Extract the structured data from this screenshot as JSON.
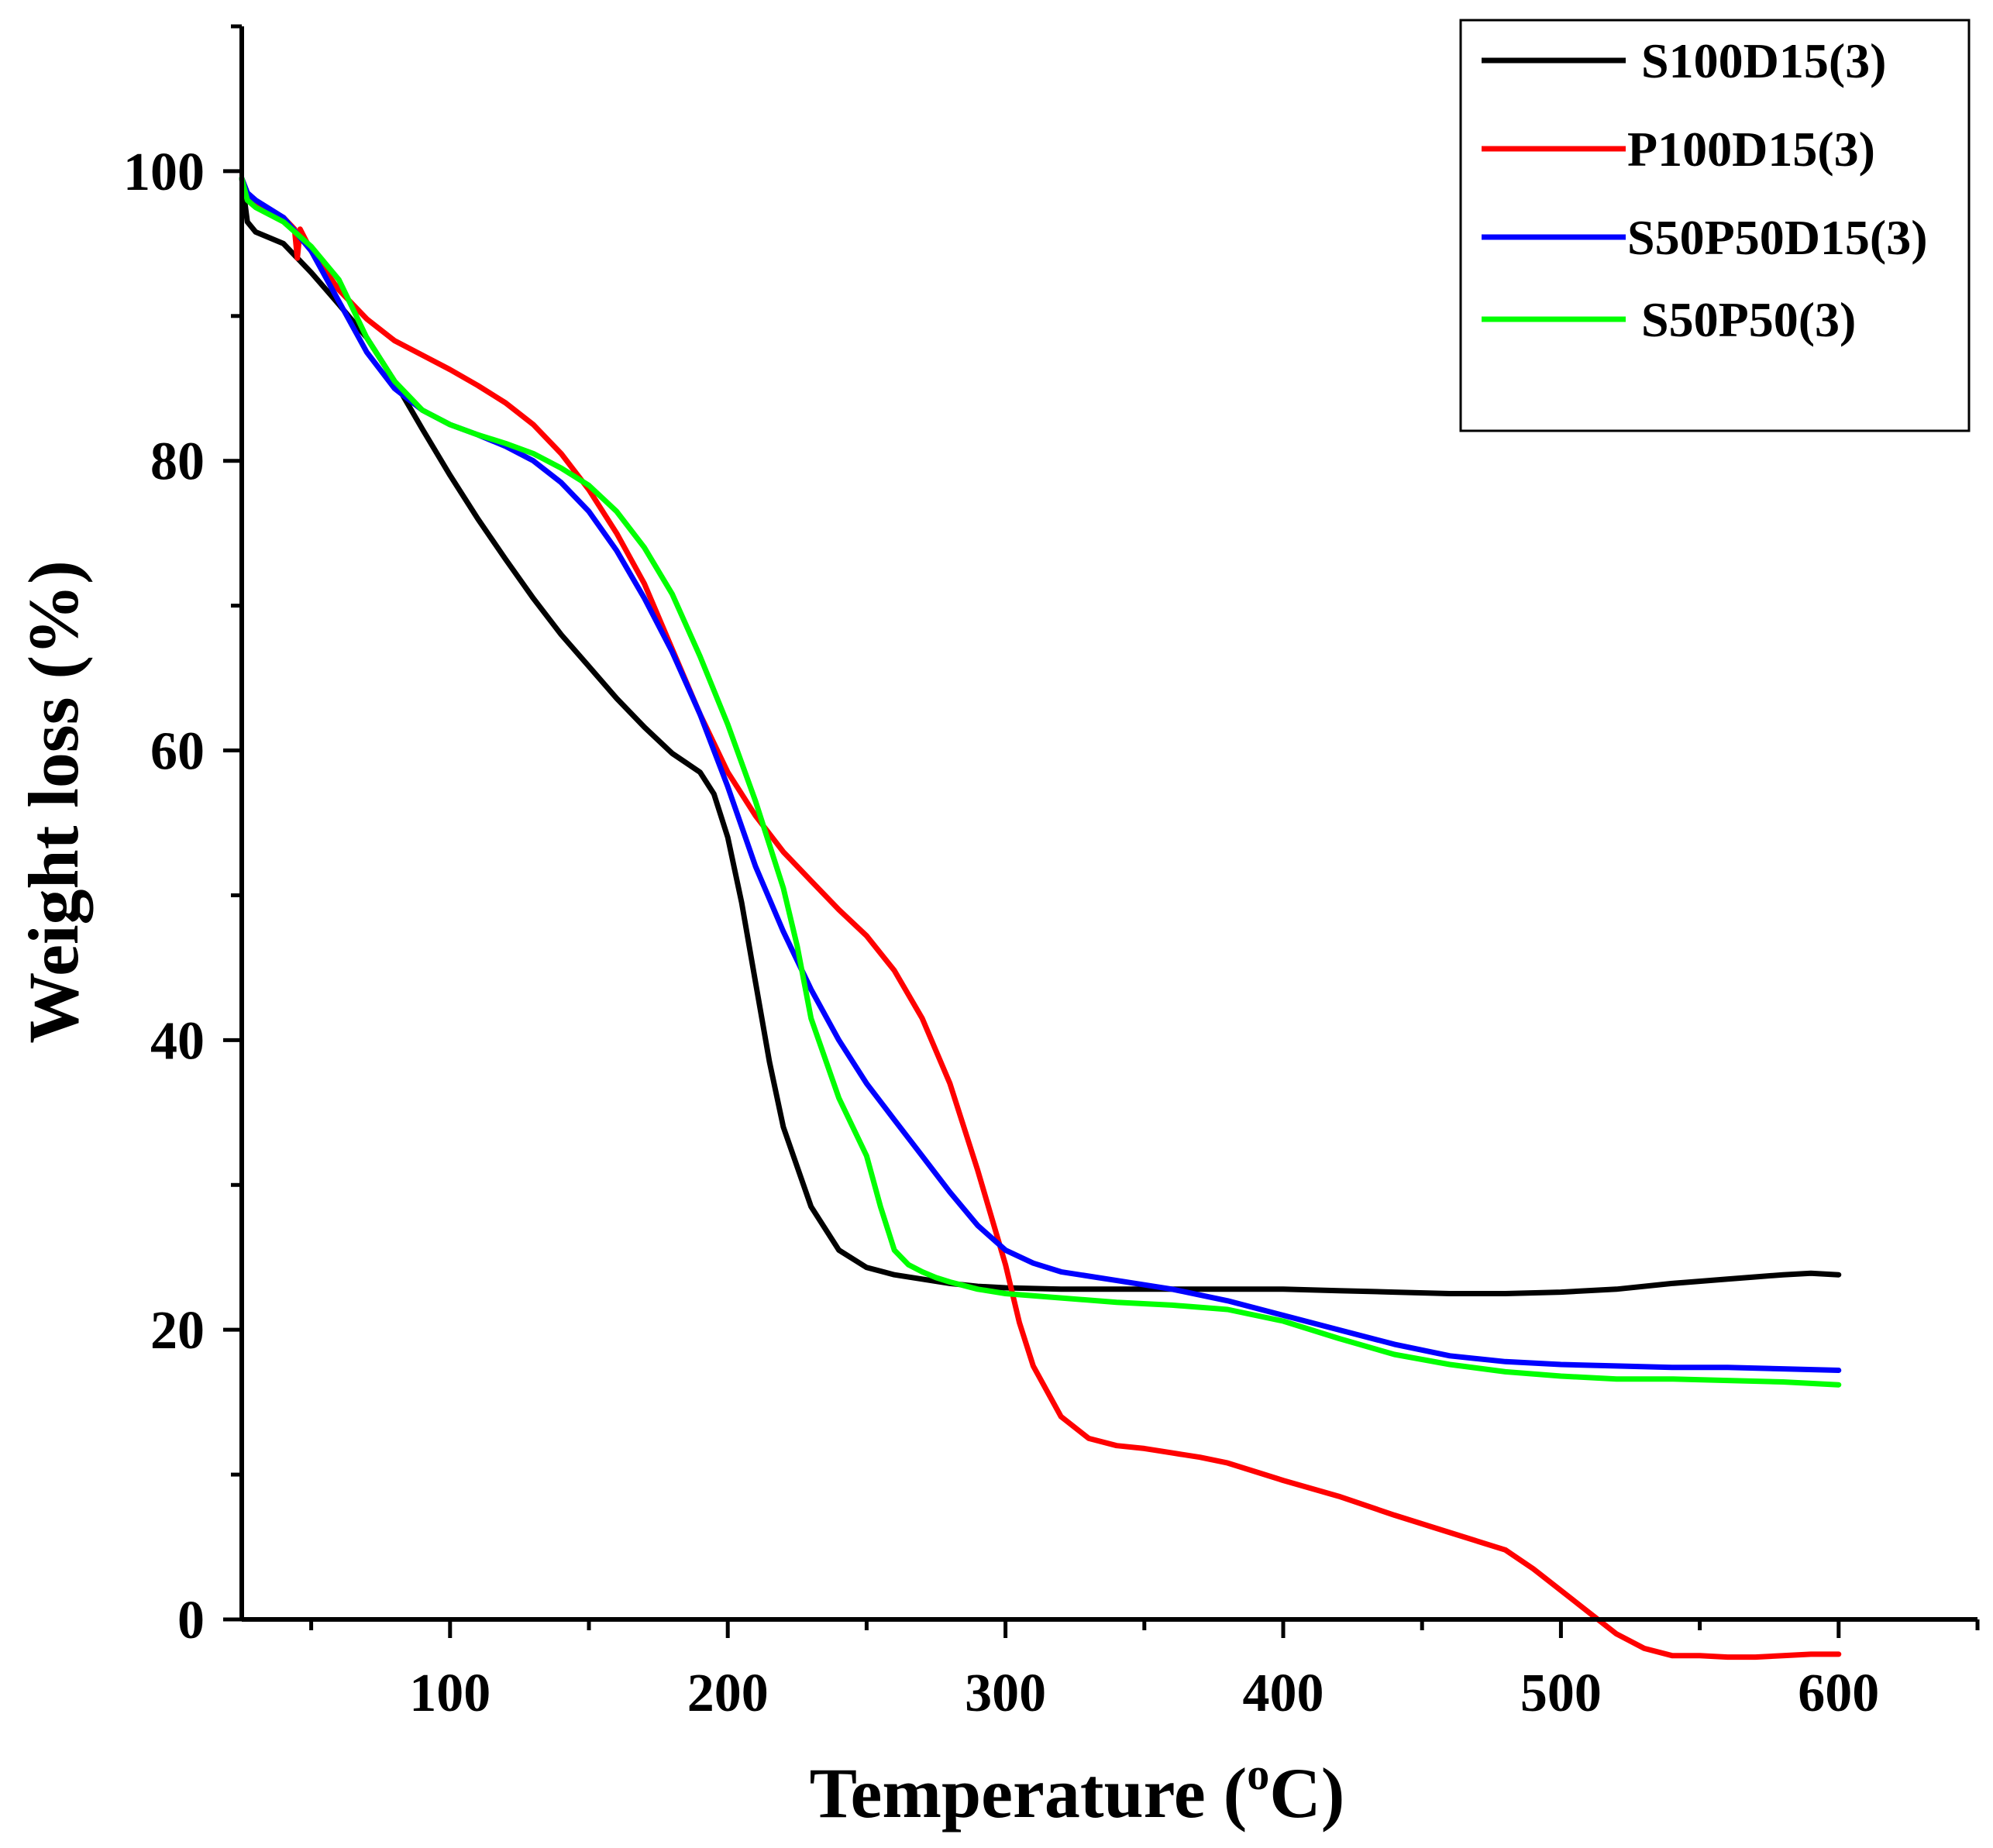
{
  "chart_data": {
    "type": "line",
    "title": "",
    "xlabel": "Temperature (",
    "xlabel_sup": "o",
    "xlabel_end": "C)",
    "ylabel": "Weight loss (%)",
    "xlim": [
      25,
      650
    ],
    "ylim": [
      0,
      110
    ],
    "xticks": [
      {
        "value": 100,
        "label": "100"
      },
      {
        "value": 200,
        "label": "200"
      },
      {
        "value": 300,
        "label": "300"
      },
      {
        "value": 400,
        "label": "400"
      },
      {
        "value": 500,
        "label": "500"
      },
      {
        "value": 600,
        "label": "600"
      }
    ],
    "xminor": [
      50,
      150,
      250,
      350,
      450,
      550,
      650
    ],
    "yticks": [
      {
        "value": 0,
        "label": "0"
      },
      {
        "value": 20,
        "label": "20"
      },
      {
        "value": 40,
        "label": "40"
      },
      {
        "value": 60,
        "label": "60"
      },
      {
        "value": 80,
        "label": "80"
      },
      {
        "value": 100,
        "label": "100"
      }
    ],
    "yminor": [
      10,
      30,
      50,
      70,
      90,
      110
    ],
    "legend_position": "top-right",
    "series": [
      {
        "name": "S100D15(3)",
        "color": "#000000",
        "x": [
          25,
          27,
          30,
          40,
          50,
          60,
          70,
          80,
          90,
          100,
          110,
          120,
          130,
          140,
          150,
          160,
          170,
          180,
          190,
          195,
          200,
          205,
          210,
          215,
          220,
          230,
          240,
          250,
          260,
          270,
          280,
          290,
          300,
          320,
          340,
          360,
          380,
          400,
          420,
          440,
          460,
          480,
          500,
          520,
          540,
          560,
          580,
          590,
          600
        ],
        "y": [
          99.5,
          96.5,
          95.8,
          95.0,
          93.0,
          90.8,
          88.5,
          85.5,
          82.2,
          79.0,
          76.0,
          73.2,
          70.5,
          68.0,
          65.8,
          63.6,
          61.6,
          59.8,
          58.5,
          57.0,
          54.0,
          49.5,
          44.0,
          38.5,
          34.0,
          28.5,
          25.5,
          24.3,
          23.8,
          23.5,
          23.2,
          23.0,
          22.9,
          22.8,
          22.8,
          22.8,
          22.8,
          22.8,
          22.7,
          22.6,
          22.5,
          22.5,
          22.6,
          22.8,
          23.2,
          23.5,
          23.8,
          23.9,
          23.8
        ]
      },
      {
        "name": "P100D15(3)",
        "color": "#ff0000",
        "x": [
          25,
          27,
          30,
          40,
          44,
          45,
          46,
          50,
          60,
          70,
          80,
          90,
          100,
          110,
          120,
          130,
          140,
          150,
          160,
          170,
          180,
          190,
          200,
          210,
          220,
          230,
          240,
          250,
          260,
          270,
          280,
          290,
          300,
          305,
          310,
          320,
          330,
          340,
          350,
          360,
          370,
          380,
          400,
          420,
          440,
          460,
          480,
          490,
          500,
          510,
          520,
          530,
          540,
          550,
          560,
          570,
          580,
          590,
          600
        ],
        "y": [
          99.5,
          98.5,
          97.8,
          96.8,
          96.0,
          94.0,
          96.0,
          94.5,
          91.8,
          89.8,
          88.3,
          87.3,
          86.3,
          85.2,
          84.0,
          82.5,
          80.5,
          78.0,
          75.0,
          71.5,
          67.0,
          62.5,
          58.5,
          55.5,
          53.0,
          51.0,
          49.0,
          47.2,
          44.8,
          41.5,
          37.0,
          31.0,
          24.5,
          20.5,
          17.5,
          14.0,
          12.5,
          12.0,
          11.8,
          11.5,
          11.2,
          10.8,
          9.6,
          8.5,
          7.2,
          6.0,
          4.8,
          3.5,
          2.0,
          0.5,
          -1.0,
          -2.0,
          -2.5,
          -2.5,
          -2.6,
          -2.6,
          -2.5,
          -2.4,
          -2.4
        ]
      },
      {
        "name": "S50P50D15(3)",
        "color": "#0000ff",
        "x": [
          25,
          27,
          30,
          40,
          50,
          60,
          70,
          80,
          90,
          100,
          110,
          120,
          130,
          140,
          150,
          160,
          170,
          180,
          190,
          200,
          210,
          220,
          230,
          240,
          250,
          260,
          270,
          280,
          290,
          300,
          310,
          320,
          340,
          360,
          380,
          400,
          420,
          440,
          460,
          480,
          500,
          520,
          540,
          560,
          580,
          600
        ],
        "y": [
          99.5,
          98.5,
          98.0,
          96.8,
          94.5,
          91.0,
          87.5,
          85.0,
          83.5,
          82.5,
          81.8,
          81.0,
          80.0,
          78.5,
          76.5,
          73.8,
          70.5,
          66.8,
          62.5,
          57.5,
          52.0,
          47.5,
          43.5,
          40.0,
          37.0,
          34.5,
          32.0,
          29.5,
          27.2,
          25.5,
          24.6,
          24.0,
          23.4,
          22.8,
          22.0,
          21.0,
          20.0,
          19.0,
          18.2,
          17.8,
          17.6,
          17.5,
          17.4,
          17.4,
          17.3,
          17.2
        ]
      },
      {
        "name": "S50P50(3)",
        "color": "#00ff00",
        "x": [
          25,
          27,
          30,
          40,
          50,
          60,
          70,
          80,
          90,
          100,
          110,
          120,
          130,
          140,
          150,
          160,
          170,
          180,
          190,
          200,
          210,
          220,
          225,
          230,
          240,
          250,
          255,
          260,
          265,
          270,
          275,
          280,
          290,
          300,
          320,
          340,
          360,
          380,
          400,
          420,
          440,
          460,
          480,
          500,
          520,
          540,
          560,
          580,
          600
        ],
        "y": [
          99.5,
          98.0,
          97.5,
          96.5,
          94.8,
          92.5,
          88.5,
          85.5,
          83.5,
          82.5,
          81.8,
          81.2,
          80.5,
          79.5,
          78.3,
          76.5,
          74.0,
          70.8,
          66.5,
          61.8,
          56.5,
          50.5,
          46.5,
          41.5,
          36.0,
          32.0,
          28.5,
          25.5,
          24.5,
          24.0,
          23.6,
          23.3,
          22.8,
          22.5,
          22.2,
          21.9,
          21.7,
          21.4,
          20.6,
          19.4,
          18.3,
          17.6,
          17.1,
          16.8,
          16.6,
          16.6,
          16.5,
          16.4,
          16.2
        ]
      }
    ]
  }
}
